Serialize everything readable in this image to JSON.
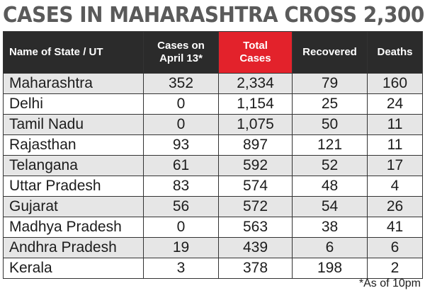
{
  "title": "CASES IN MAHARASHTRA CROSS 2,300",
  "table": {
    "headers": {
      "state": "Name of State / UT",
      "cases_april13_line1": "Cases on",
      "cases_april13_line2": "April 13*",
      "total_line1": "Total",
      "total_line2": "Cases",
      "recovered": "Recovered",
      "deaths": "Deaths"
    },
    "rows": [
      {
        "state": "Maharashtra",
        "april13": "352",
        "total": "2,334",
        "recovered": "79",
        "deaths": "160"
      },
      {
        "state": "Delhi",
        "april13": "0",
        "total": "1,154",
        "recovered": "25",
        "deaths": "24"
      },
      {
        "state": "Tamil Nadu",
        "april13": "0",
        "total": "1,075",
        "recovered": "50",
        "deaths": "11"
      },
      {
        "state": "Rajasthan",
        "april13": "93",
        "total": "897",
        "recovered": "121",
        "deaths": "11"
      },
      {
        "state": "Telangana",
        "april13": "61",
        "total": "592",
        "recovered": "52",
        "deaths": "17"
      },
      {
        "state": "Uttar Pradesh",
        "april13": "83",
        "total": "574",
        "recovered": "48",
        "deaths": "4"
      },
      {
        "state": "Gujarat",
        "april13": "56",
        "total": "572",
        "recovered": "54",
        "deaths": "26"
      },
      {
        "state": "Madhya Pradesh",
        "april13": "0",
        "total": "563",
        "recovered": "38",
        "deaths": "41"
      },
      {
        "state": "Andhra Pradesh",
        "april13": "19",
        "total": "439",
        "recovered": "6",
        "deaths": "6"
      },
      {
        "state": "Kerala",
        "april13": "3",
        "total": "378",
        "recovered": "198",
        "deaths": "2"
      }
    ]
  },
  "footnote": "*As of 10pm",
  "colors": {
    "title": "#5a5a5a",
    "header_bg": "#2b2b2b",
    "highlight_header_bg": "#e3222b",
    "row_shade": "#e6e6e6"
  }
}
